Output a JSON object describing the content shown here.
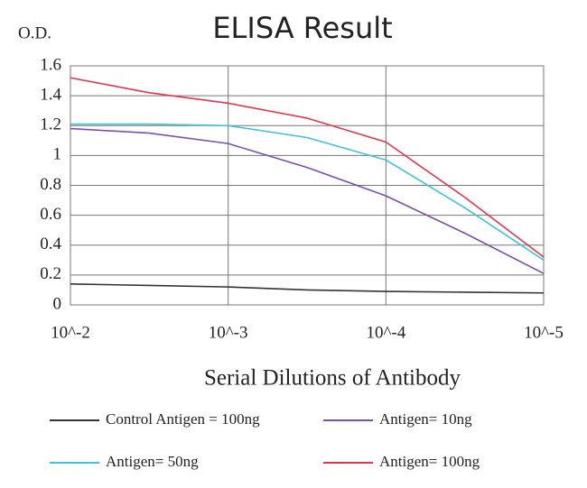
{
  "chart_data": {
    "type": "line",
    "title": "ELISA Result",
    "y_label": "O.D.",
    "x_label": "Serial Dilutions  of Antibody",
    "x": [
      -2,
      -2.5,
      -3,
      -3.5,
      -4,
      -4.5,
      -5
    ],
    "xlim": [
      -2,
      -5
    ],
    "xticks": [
      {
        "value": -2,
        "label": "10^-2"
      },
      {
        "value": -3,
        "label": "10^-3"
      },
      {
        "value": -4,
        "label": "10^-4"
      },
      {
        "value": -5,
        "label": "10^-5"
      }
    ],
    "ylim": [
      0,
      1.6
    ],
    "yticks": [
      0,
      0.2,
      0.4,
      0.6,
      0.8,
      1,
      1.2,
      1.4,
      1.6
    ],
    "grid": true,
    "series": [
      {
        "name": "Control Antigen = 100ng",
        "color": "#333333",
        "values": [
          0.14,
          0.13,
          0.12,
          0.1,
          0.09,
          0.085,
          0.08
        ]
      },
      {
        "name": "Antigen= 10ng",
        "color": "#7b4fb0",
        "values": [
          1.18,
          1.15,
          1.08,
          0.92,
          0.73,
          0.48,
          0.21
        ]
      },
      {
        "name": "Antigen= 50ng",
        "color": "#3cc4dc",
        "values": [
          1.21,
          1.21,
          1.2,
          1.12,
          0.97,
          0.65,
          0.3
        ]
      },
      {
        "name": "Antigen= 100ng",
        "color": "#e8344a",
        "values": [
          1.52,
          1.42,
          1.35,
          1.25,
          1.09,
          0.72,
          0.32
        ]
      }
    ]
  }
}
